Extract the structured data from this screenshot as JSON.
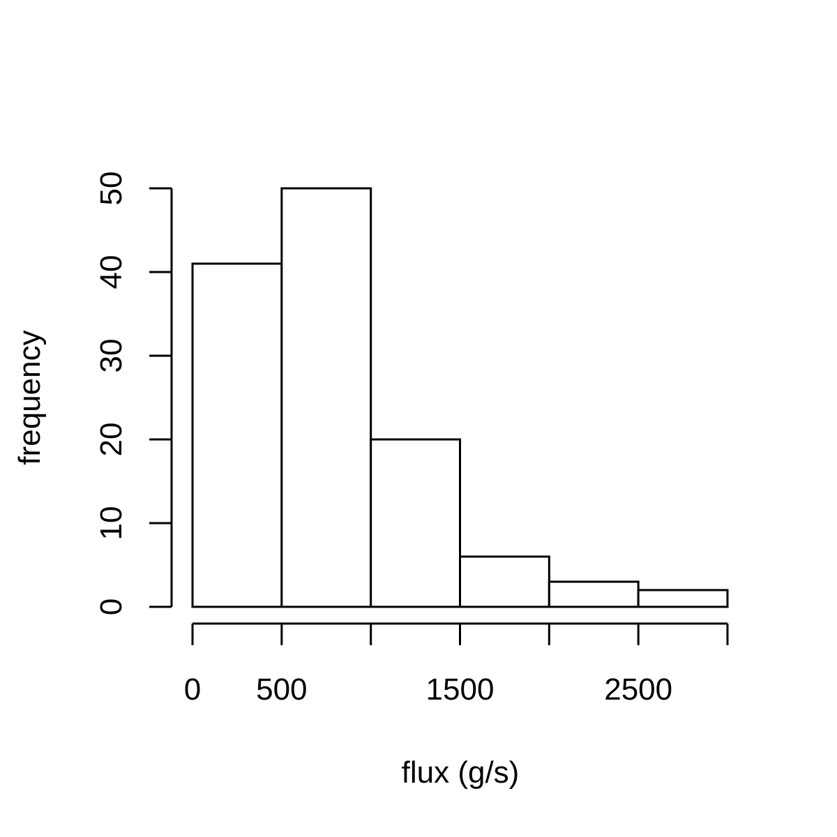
{
  "chart_data": {
    "type": "bar",
    "title": "",
    "xlabel": "flux (g/s)",
    "ylabel": "frequency",
    "bins": [
      {
        "from": 0,
        "to": 500,
        "count": 41
      },
      {
        "from": 500,
        "to": 1000,
        "count": 50
      },
      {
        "from": 1000,
        "to": 1500,
        "count": 20
      },
      {
        "from": 1500,
        "to": 2000,
        "count": 6
      },
      {
        "from": 2000,
        "to": 2500,
        "count": 3
      },
      {
        "from": 2500,
        "to": 3000,
        "count": 2
      }
    ],
    "xlim": [
      0,
      3000
    ],
    "ylim": [
      0,
      50
    ],
    "x_ticks": [
      0,
      500,
      1000,
      1500,
      2000,
      2500,
      3000
    ],
    "x_tick_labels": [
      "0",
      "500",
      "",
      "1500",
      "",
      "2500",
      ""
    ],
    "y_ticks": [
      0,
      10,
      20,
      30,
      40,
      50
    ],
    "y_tick_labels": [
      "0",
      "10",
      "20",
      "30",
      "40",
      "50"
    ],
    "grid": false,
    "legend": "none",
    "bar_fill": "#ffffff",
    "bar_stroke": "#000000"
  }
}
